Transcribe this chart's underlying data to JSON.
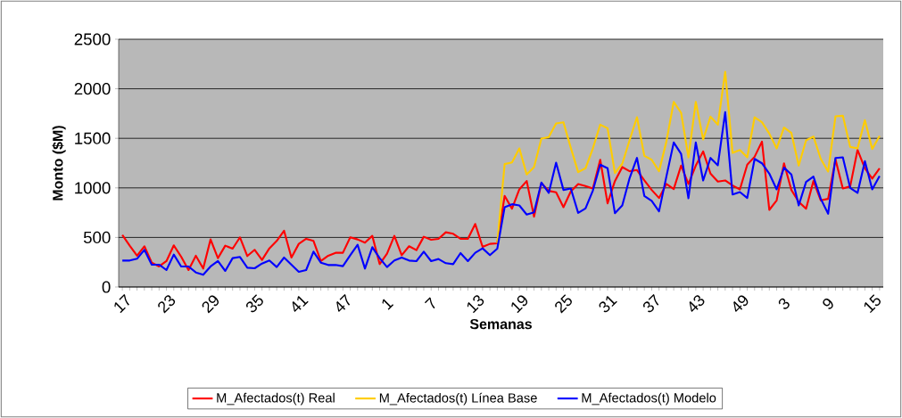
{
  "chart_data": {
    "type": "line",
    "xlabel": "Semanas",
    "ylabel": "Monto ($M)",
    "categories": [
      "17",
      null,
      null,
      null,
      null,
      null,
      "23",
      null,
      null,
      null,
      null,
      null,
      "29",
      null,
      null,
      null,
      null,
      null,
      "35",
      null,
      null,
      null,
      null,
      null,
      "41",
      null,
      null,
      null,
      null,
      null,
      "47",
      null,
      null,
      null,
      null,
      null,
      "1",
      null,
      null,
      null,
      null,
      null,
      "7",
      null,
      null,
      null,
      null,
      null,
      "13",
      null,
      null,
      null,
      null,
      null,
      "19",
      null,
      null,
      null,
      null,
      null,
      "25",
      null,
      null,
      null,
      null,
      null,
      "31",
      null,
      null,
      null,
      null,
      null,
      "37",
      null,
      null,
      null,
      null,
      null,
      "43",
      null,
      null,
      null,
      null,
      null,
      "49",
      null,
      null,
      null,
      null,
      null,
      "3",
      null,
      null,
      null,
      null,
      null,
      "9",
      null,
      null,
      null,
      null,
      null,
      "15",
      null
    ],
    "ylim": [
      0,
      2500
    ],
    "yticks": [
      0,
      500,
      1000,
      1500,
      2000,
      2500
    ],
    "grid": "y",
    "legend": "bottom",
    "marker": "none",
    "line_style": "solid",
    "series": [
      {
        "name": "M_Afectados(t) Real",
        "color": "#ff0000",
        "values": [
          525,
          417,
          315,
          411,
          246,
          207,
          261,
          420,
          306,
          171,
          315,
          186,
          480,
          291,
          417,
          387,
          501,
          312,
          375,
          273,
          390,
          465,
          567,
          297,
          435,
          486,
          465,
          261,
          315,
          345,
          345,
          501,
          480,
          447,
          516,
          231,
          336,
          516,
          321,
          411,
          372,
          507,
          477,
          486,
          552,
          537,
          486,
          486,
          636,
          405,
          435,
          441,
          919,
          790,
          985,
          1069,
          710,
          1048,
          970,
          955,
          805,
          964,
          1039,
          1018,
          994,
          1284,
          844,
          1069,
          1210,
          1168,
          1180,
          1075,
          979,
          898,
          1039,
          988,
          1225,
          1039,
          1225,
          1368,
          1144,
          1063,
          1075,
          1024,
          985,
          1234,
          1314,
          1467,
          778,
          874,
          1248,
          979,
          859,
          790,
          1069,
          874,
          889,
          1287,
          994,
          1015,
          1383,
          1198,
          1093,
          1198
        ]
      },
      {
        "name": "M_Afectados(t) Línea Base",
        "color": "#ffcc00",
        "values": [
          null,
          null,
          null,
          null,
          null,
          null,
          null,
          null,
          null,
          null,
          null,
          null,
          null,
          null,
          null,
          null,
          null,
          null,
          null,
          null,
          null,
          null,
          null,
          null,
          null,
          null,
          null,
          null,
          null,
          null,
          null,
          null,
          null,
          null,
          null,
          null,
          null,
          null,
          null,
          null,
          null,
          null,
          null,
          null,
          null,
          null,
          null,
          null,
          null,
          null,
          null,
          441,
          1240,
          1257,
          1398,
          1135,
          1210,
          1497,
          1512,
          1650,
          1662,
          1404,
          1159,
          1198,
          1398,
          1638,
          1602,
          1150,
          1243,
          1482,
          1713,
          1323,
          1284,
          1168,
          1467,
          1868,
          1758,
          1308,
          1868,
          1488,
          1719,
          1638,
          2171,
          1353,
          1383,
          1308,
          1713,
          1662,
          1548,
          1398,
          1608,
          1554,
          1225,
          1479,
          1518,
          1293,
          1165,
          1722,
          1728,
          1413,
          1398,
          1683,
          1392,
          1524
        ]
      },
      {
        "name": "M_Afectados(t) Modelo",
        "color": "#0000ff",
        "values": [
          267,
          267,
          285,
          375,
          225,
          225,
          171,
          327,
          207,
          207,
          147,
          123,
          207,
          261,
          162,
          291,
          303,
          195,
          189,
          237,
          267,
          201,
          297,
          225,
          153,
          171,
          357,
          246,
          222,
          222,
          210,
          321,
          426,
          186,
          402,
          291,
          201,
          267,
          297,
          267,
          261,
          357,
          261,
          282,
          240,
          231,
          342,
          261,
          345,
          390,
          321,
          387,
          805,
          835,
          823,
          731,
          754,
          1054,
          949,
          1254,
          979,
          994,
          748,
          793,
          973,
          1234,
          1198,
          745,
          823,
          1099,
          1302,
          919,
          868,
          763,
          1114,
          1458,
          1344,
          895,
          1458,
          1075,
          1302,
          1228,
          1764,
          934,
          958,
          898,
          1293,
          1248,
          1144,
          985,
          1204,
          1135,
          823,
          1060,
          1114,
          889,
          739,
          1302,
          1308,
          1000,
          949,
          1269,
          985,
          1120
        ]
      }
    ]
  }
}
